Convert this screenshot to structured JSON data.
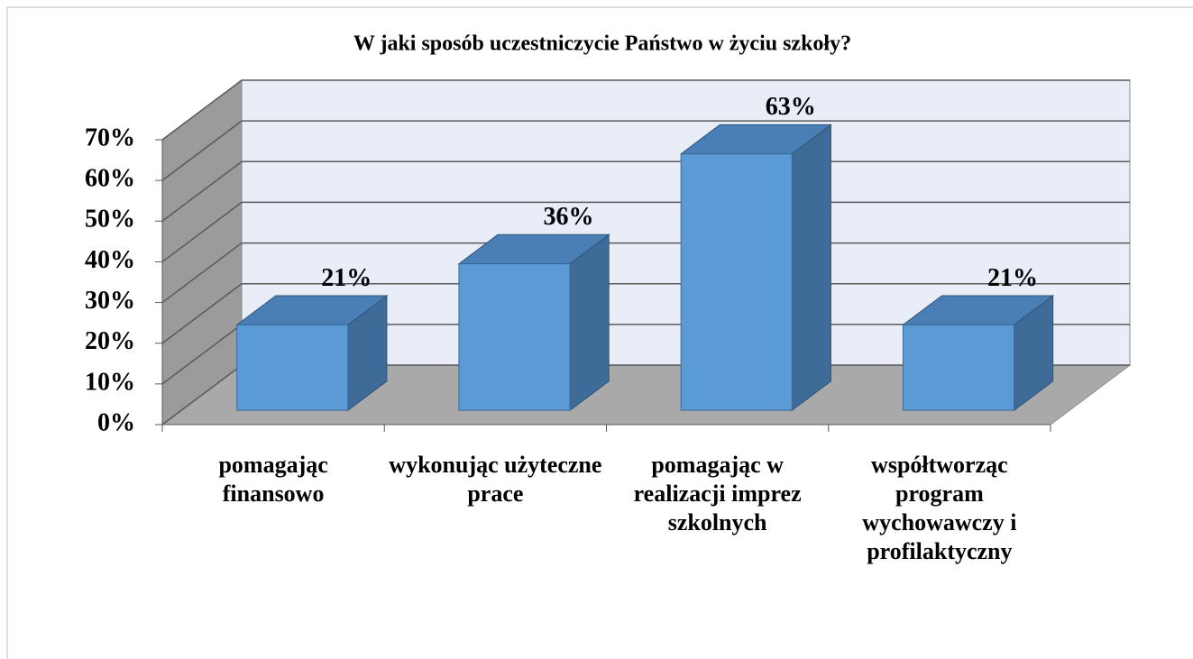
{
  "chart_data": {
    "type": "bar3d",
    "title": "W jaki sposób uczestniczycie Państwo w życiu szkoły?",
    "categories": [
      "pomagając finansowo",
      "wykonując użyteczne prace",
      "pomagając w realizacji imprez szkolnych",
      "współtworząc program wychowawczy i profilaktyczny"
    ],
    "values": [
      21,
      36,
      63,
      21
    ],
    "value_labels": [
      "21%",
      "36%",
      "63%",
      "21%"
    ],
    "color": "#5b9bd5",
    "ylim": [
      0,
      70
    ],
    "yticks": [
      {
        "value": 0,
        "label": "0%"
      },
      {
        "value": 10,
        "label": "10%"
      },
      {
        "value": 20,
        "label": "20%"
      },
      {
        "value": 30,
        "label": "30%"
      },
      {
        "value": 40,
        "label": "40%"
      },
      {
        "value": 50,
        "label": "50%"
      },
      {
        "value": 60,
        "label": "60%"
      },
      {
        "value": 70,
        "label": "70%"
      }
    ],
    "grid": true
  }
}
